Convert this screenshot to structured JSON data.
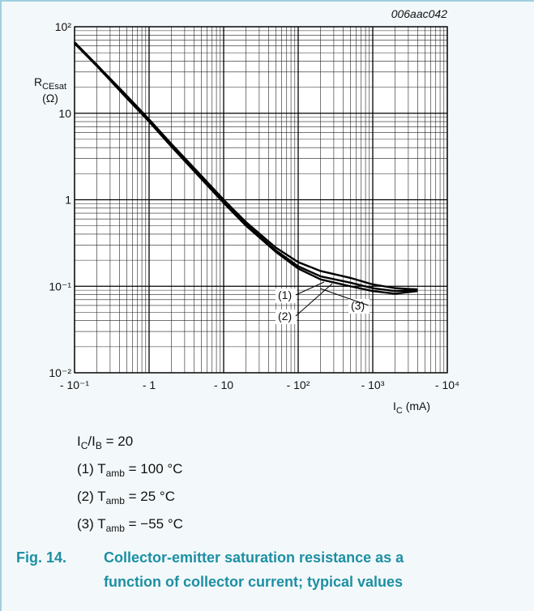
{
  "chart_data": {
    "type": "line",
    "figure_id": "006aac042",
    "y_label": {
      "symbol": "R",
      "sub": "CEsat",
      "unit": "(Ω)"
    },
    "x_label": {
      "symbol": "I",
      "sub": "C",
      "unit": " (mA)"
    },
    "log_x": true,
    "log_y": true,
    "grid": true,
    "xlim": [
      0.1,
      10000
    ],
    "ylim": [
      0.01,
      100
    ],
    "xticks": [
      {
        "value": 0.1,
        "label": "- 10⁻¹"
      },
      {
        "value": 1,
        "label": "- 1"
      },
      {
        "value": 10,
        "label": "- 10"
      },
      {
        "value": 100,
        "label": "- 10²"
      },
      {
        "value": 1000,
        "label": "- 10³"
      },
      {
        "value": 10000,
        "label": "- 10⁴"
      }
    ],
    "yticks": [
      {
        "value": 0.01,
        "label": "10⁻²"
      },
      {
        "value": 0.1,
        "label": "10⁻¹"
      },
      1,
      10,
      {
        "value": 100,
        "label": "10²"
      }
    ],
    "x": [
      0.1,
      0.2,
      0.5,
      1,
      2,
      5,
      10,
      20,
      50,
      100,
      200,
      500,
      1000,
      2000,
      4000
    ],
    "series": [
      {
        "name": "(1)",
        "color": "#000000",
        "values": [
          66,
          36,
          16,
          8.5,
          4.4,
          1.9,
          1.0,
          0.55,
          0.28,
          0.19,
          0.15,
          0.125,
          0.105,
          0.095,
          0.092
        ]
      },
      {
        "name": "(2)",
        "color": "#000000",
        "values": [
          66,
          36,
          15.5,
          8.2,
          4.2,
          1.8,
          0.95,
          0.52,
          0.26,
          0.17,
          0.13,
          0.11,
          0.095,
          0.088,
          0.09
        ]
      },
      {
        "name": "(3)",
        "color": "#000000",
        "values": [
          64,
          35,
          15,
          8,
          4.1,
          1.75,
          0.92,
          0.5,
          0.25,
          0.16,
          0.12,
          0.1,
          0.088,
          0.082,
          0.088
        ]
      }
    ],
    "notes": [
      {
        "parts": [
          [
            "I",
            ""
          ],
          [
            "C",
            "sub"
          ],
          [
            "/I",
            ""
          ],
          [
            "B",
            "sub"
          ],
          [
            " = 20",
            ""
          ]
        ]
      },
      {
        "parts": [
          [
            "(1) T",
            ""
          ],
          [
            "amb",
            "sub"
          ],
          [
            " = 100 °C",
            ""
          ]
        ]
      },
      {
        "parts": [
          [
            "(2) T",
            ""
          ],
          [
            "amb",
            "sub"
          ],
          [
            " = 25 °C",
            ""
          ]
        ]
      },
      {
        "parts": [
          [
            "(3) T",
            ""
          ],
          [
            "amb",
            "sub"
          ],
          [
            " = −55 °C",
            ""
          ]
        ]
      }
    ],
    "caption": {
      "number": "Fig. 14.",
      "lines": [
        "Collector-emitter saturation resistance as a",
        "function of collector current; typical values"
      ]
    }
  }
}
